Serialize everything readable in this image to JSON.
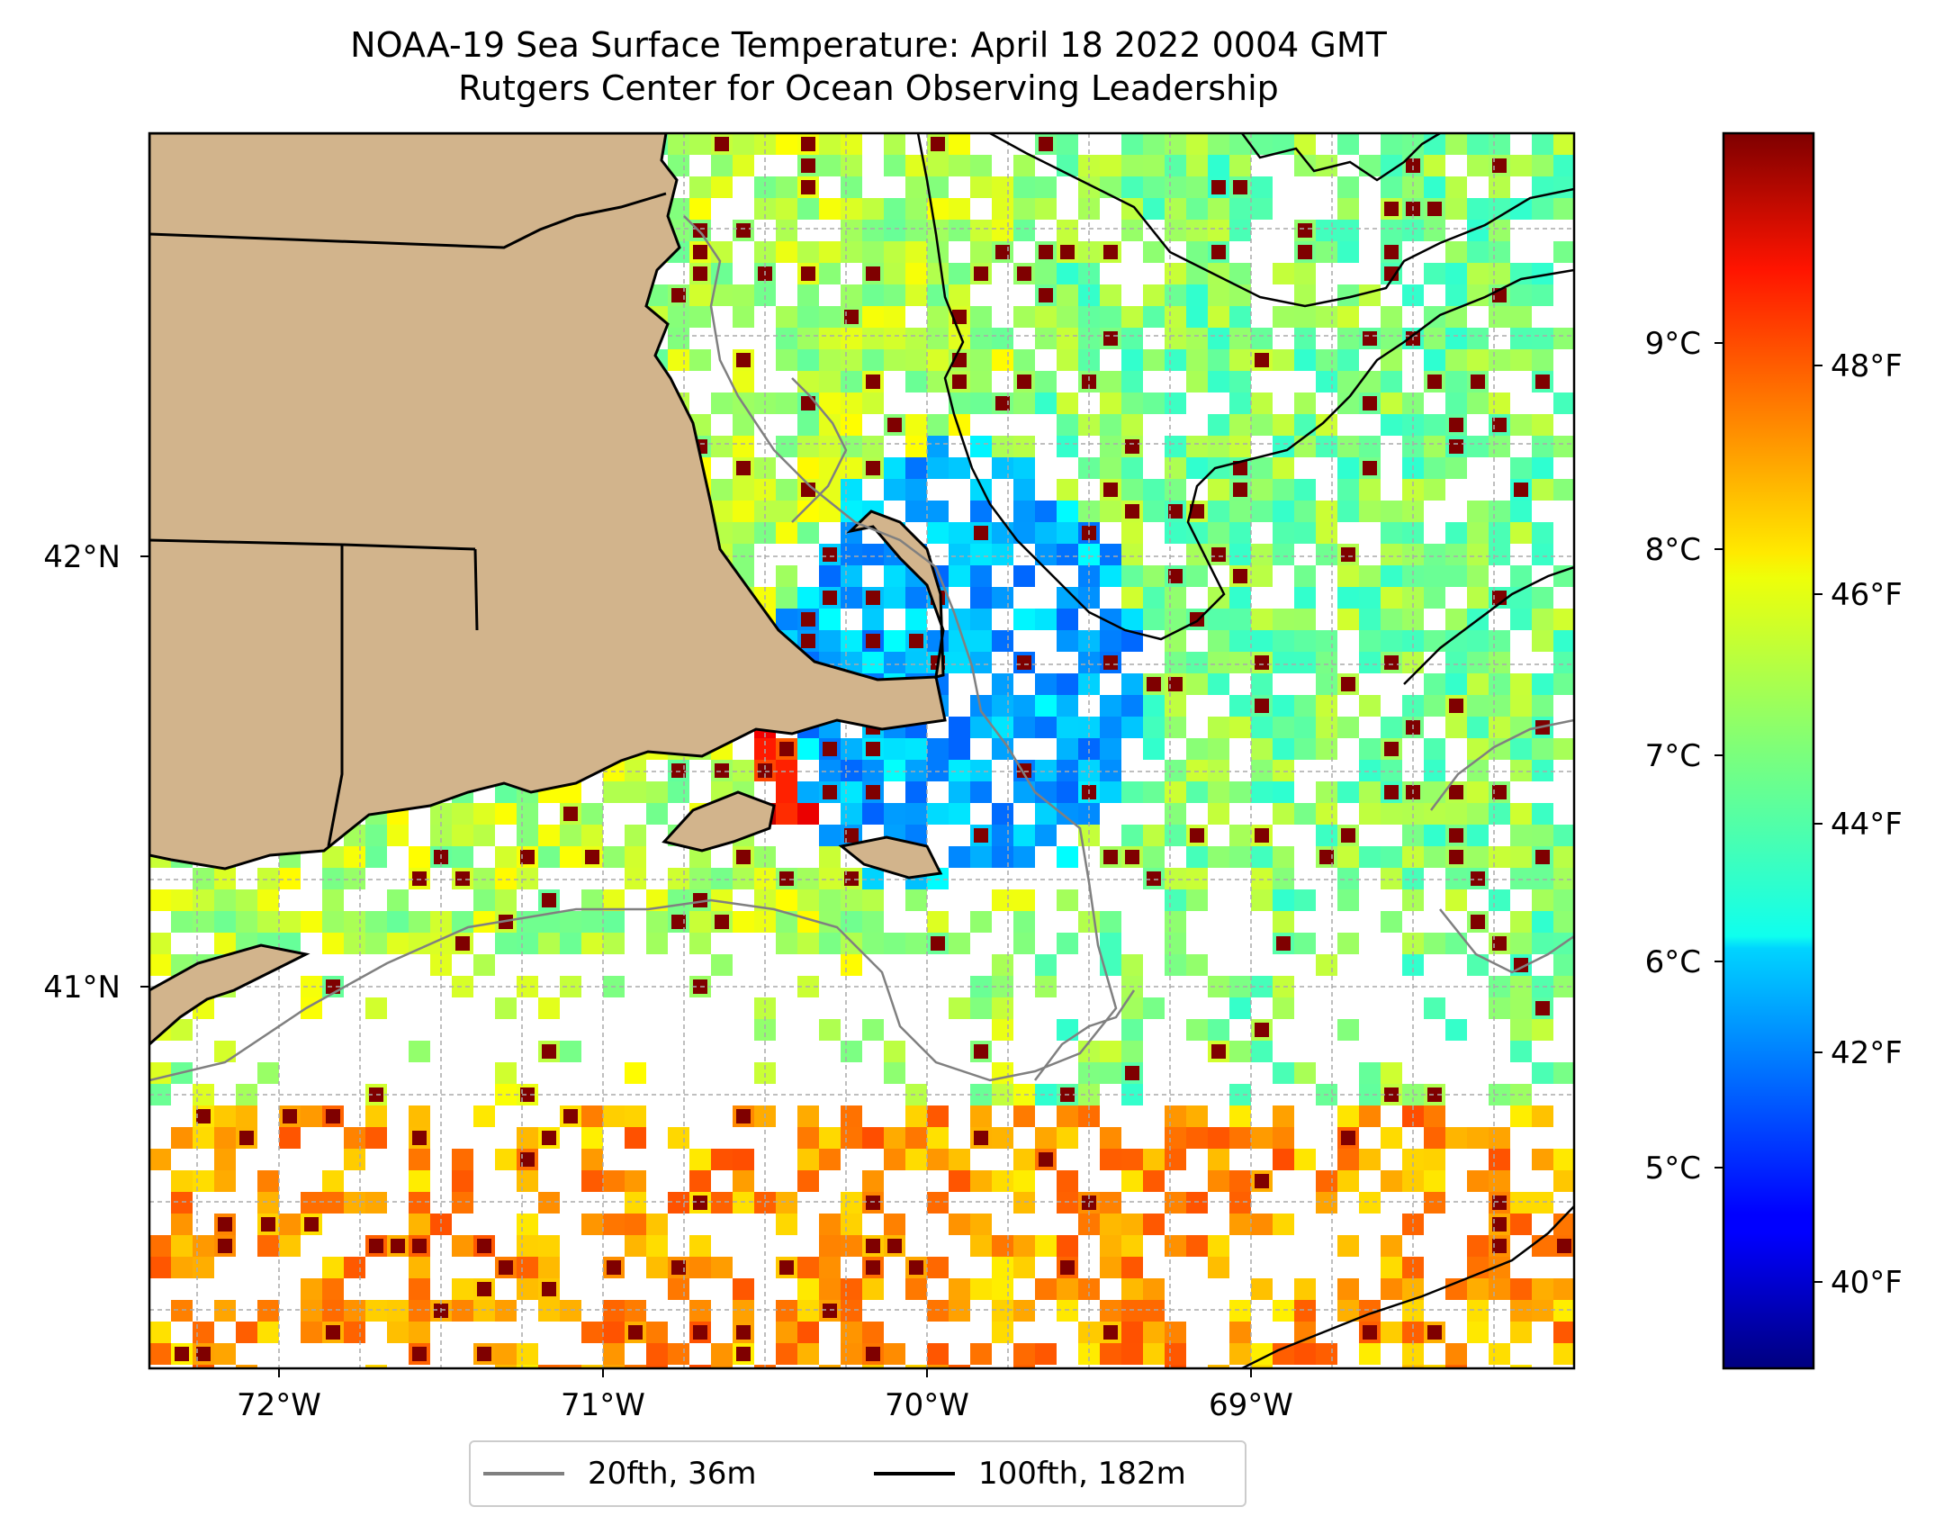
{
  "title": {
    "line1": "NOAA-19 Sea Surface Temperature: April 18 2022 0004 GMT",
    "line2": "Rutgers Center for Ocean Observing Leadership"
  },
  "colors": {
    "land": "#d2b48c",
    "coast": "#000000",
    "contour_20fth": "#808080",
    "contour_100fth": "#000000",
    "colormap": "jet"
  },
  "map": {
    "lon_ticks": [
      "72°W",
      "71°W",
      "70°W",
      "69°W"
    ],
    "lat_ticks": [
      "42°N",
      "41°N"
    ],
    "grid": true
  },
  "colorbar": {
    "celsius_ticks": [
      "9°C",
      "8°C",
      "7°C",
      "6°C",
      "5°C"
    ],
    "fahrenheit_ticks": [
      "48°F",
      "46°F",
      "44°F",
      "42°F",
      "40°F"
    ]
  },
  "legend": [
    {
      "label": "20fth, 36m",
      "color": "#808080"
    },
    {
      "label": "100fth, 182m",
      "color": "#000000"
    }
  ]
}
